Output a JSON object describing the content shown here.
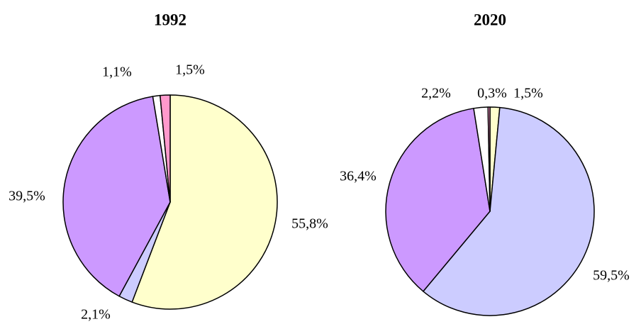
{
  "chart_data": [
    {
      "type": "pie",
      "title": "1992",
      "values": [
        55.8,
        2.1,
        39.5,
        1.1,
        1.5
      ],
      "value_labels": [
        "55,8%",
        "2,1%",
        "39,5%",
        "1,1%",
        "1,5%"
      ],
      "colors": [
        "#ffffcc",
        "#ccccff",
        "#cc99ff",
        "#ffffff",
        "#ff99cc"
      ]
    },
    {
      "type": "pie",
      "title": "2020",
      "values": [
        1.5,
        59.5,
        36.4,
        2.2,
        0.3
      ],
      "value_labels": [
        "1,5%",
        "59,5%",
        "36,4%",
        "2,2%",
        "0,3%"
      ],
      "colors": [
        "#ffffcc",
        "#ccccff",
        "#cc99ff",
        "#ffffff",
        "#ff99cc"
      ]
    }
  ]
}
